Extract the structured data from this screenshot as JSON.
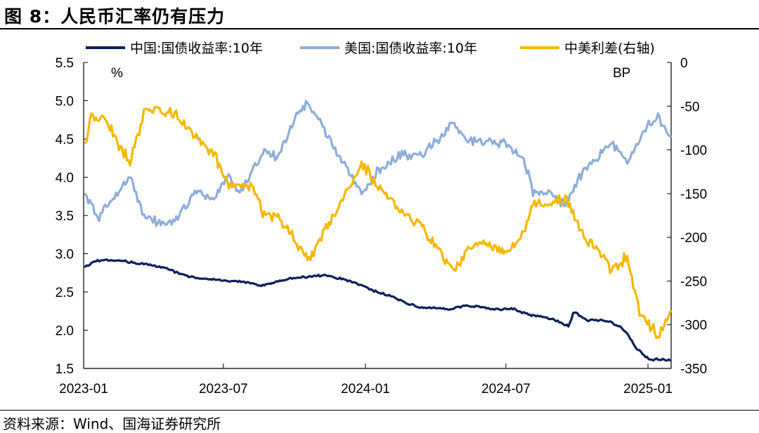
{
  "figure": {
    "title": "图 8：人民币汇率仍有压力",
    "source": "资料来源：Wind、国海证券研究所"
  },
  "chart_data": {
    "type": "line",
    "left_axis": {
      "unit": "%",
      "min": 1.5,
      "max": 5.5,
      "ticks": [
        "5.5",
        "5.0",
        "4.5",
        "4.0",
        "3.5",
        "3.0",
        "2.5",
        "2.0",
        "1.5"
      ]
    },
    "right_axis": {
      "unit": "BP",
      "min": -350,
      "max": 0,
      "ticks": [
        "0",
        "-50",
        "-100",
        "-150",
        "-200",
        "-250",
        "-300",
        "-350"
      ]
    },
    "x_axis": {
      "start": "2023-01-01",
      "end": "2025-01-31",
      "ticks": [
        "2023-01",
        "2023-07",
        "2024-01",
        "2024-07",
        "2025-01"
      ]
    },
    "legend_position": "top",
    "grid": false,
    "series": [
      {
        "name": "中国:国债收益率:10年",
        "axis": "left",
        "color": "#0d1f5c",
        "points": [
          [
            "2023-01-03",
            2.82
          ],
          [
            "2023-01-15",
            2.9
          ],
          [
            "2023-02-01",
            2.92
          ],
          [
            "2023-02-20",
            2.91
          ],
          [
            "2023-03-10",
            2.88
          ],
          [
            "2023-04-01",
            2.85
          ],
          [
            "2023-04-20",
            2.8
          ],
          [
            "2023-05-10",
            2.72
          ],
          [
            "2023-06-01",
            2.68
          ],
          [
            "2023-06-20",
            2.66
          ],
          [
            "2023-07-10",
            2.64
          ],
          [
            "2023-08-01",
            2.63
          ],
          [
            "2023-08-20",
            2.58
          ],
          [
            "2023-09-10",
            2.64
          ],
          [
            "2023-10-01",
            2.69
          ],
          [
            "2023-10-20",
            2.7
          ],
          [
            "2023-11-10",
            2.72
          ],
          [
            "2023-12-01",
            2.67
          ],
          [
            "2023-12-20",
            2.62
          ],
          [
            "2024-01-10",
            2.52
          ],
          [
            "2024-02-01",
            2.45
          ],
          [
            "2024-02-20",
            2.37
          ],
          [
            "2024-03-10",
            2.3
          ],
          [
            "2024-04-01",
            2.29
          ],
          [
            "2024-04-20",
            2.28
          ],
          [
            "2024-05-10",
            2.32
          ],
          [
            "2024-06-01",
            2.3
          ],
          [
            "2024-06-20",
            2.27
          ],
          [
            "2024-07-10",
            2.28
          ],
          [
            "2024-08-01",
            2.2
          ],
          [
            "2024-08-20",
            2.17
          ],
          [
            "2024-09-01",
            2.14
          ],
          [
            "2024-09-20",
            2.05
          ],
          [
            "2024-09-27",
            2.24
          ],
          [
            "2024-10-15",
            2.13
          ],
          [
            "2024-11-10",
            2.12
          ],
          [
            "2024-11-25",
            2.05
          ],
          [
            "2024-12-05",
            1.96
          ],
          [
            "2024-12-15",
            1.78
          ],
          [
            "2025-01-03",
            1.62
          ],
          [
            "2025-01-31",
            1.61
          ]
        ]
      },
      {
        "name": "美国:国债收益率:10年",
        "axis": "left",
        "color": "#8fadda",
        "points": [
          [
            "2023-01-03",
            3.79
          ],
          [
            "2023-01-20",
            3.48
          ],
          [
            "2023-02-15",
            3.8
          ],
          [
            "2023-03-02",
            4.03
          ],
          [
            "2023-03-20",
            3.48
          ],
          [
            "2023-04-10",
            3.4
          ],
          [
            "2023-05-01",
            3.45
          ],
          [
            "2023-05-25",
            3.8
          ],
          [
            "2023-06-20",
            3.72
          ],
          [
            "2023-07-07",
            4.05
          ],
          [
            "2023-07-20",
            3.8
          ],
          [
            "2023-08-10",
            4.1
          ],
          [
            "2023-08-21",
            4.33
          ],
          [
            "2023-09-10",
            4.27
          ],
          [
            "2023-10-03",
            4.8
          ],
          [
            "2023-10-19",
            4.98
          ],
          [
            "2023-11-10",
            4.6
          ],
          [
            "2023-12-01",
            4.22
          ],
          [
            "2023-12-27",
            3.79
          ],
          [
            "2024-01-20",
            4.12
          ],
          [
            "2024-02-15",
            4.28
          ],
          [
            "2024-03-15",
            4.3
          ],
          [
            "2024-04-25",
            4.7
          ],
          [
            "2024-05-10",
            4.5
          ],
          [
            "2024-06-01",
            4.45
          ],
          [
            "2024-07-01",
            4.45
          ],
          [
            "2024-07-25",
            4.22
          ],
          [
            "2024-08-05",
            3.8
          ],
          [
            "2024-08-25",
            3.82
          ],
          [
            "2024-09-16",
            3.62
          ],
          [
            "2024-10-10",
            4.1
          ],
          [
            "2024-11-05",
            4.35
          ],
          [
            "2024-11-15",
            4.45
          ],
          [
            "2024-12-05",
            4.18
          ],
          [
            "2024-12-25",
            4.6
          ],
          [
            "2025-01-13",
            4.79
          ],
          [
            "2025-01-31",
            4.54
          ]
        ]
      },
      {
        "name": "中美利差(右轴)",
        "axis": "right",
        "color": "#f5b800",
        "points": [
          [
            "2023-01-03",
            -97
          ],
          [
            "2023-01-10",
            -60
          ],
          [
            "2023-02-01",
            -70
          ],
          [
            "2023-02-15",
            -95
          ],
          [
            "2023-03-02",
            -114
          ],
          [
            "2023-03-20",
            -58
          ],
          [
            "2023-04-10",
            -55
          ],
          [
            "2023-05-01",
            -60
          ],
          [
            "2023-05-25",
            -85
          ],
          [
            "2023-06-20",
            -107
          ],
          [
            "2023-07-07",
            -140
          ],
          [
            "2023-08-10",
            -145
          ],
          [
            "2023-08-21",
            -172
          ],
          [
            "2023-09-10",
            -178
          ],
          [
            "2023-10-03",
            -205
          ],
          [
            "2023-10-19",
            -226
          ],
          [
            "2023-11-10",
            -190
          ],
          [
            "2023-12-01",
            -160
          ],
          [
            "2023-12-27",
            -115
          ],
          [
            "2024-01-20",
            -145
          ],
          [
            "2024-02-15",
            -170
          ],
          [
            "2024-03-15",
            -190
          ],
          [
            "2024-04-25",
            -240
          ],
          [
            "2024-05-10",
            -216
          ],
          [
            "2024-06-01",
            -205
          ],
          [
            "2024-07-01",
            -218
          ],
          [
            "2024-07-25",
            -195
          ],
          [
            "2024-08-05",
            -160
          ],
          [
            "2024-08-25",
            -162
          ],
          [
            "2024-09-16",
            -155
          ],
          [
            "2024-10-10",
            -198
          ],
          [
            "2024-11-05",
            -225
          ],
          [
            "2024-11-15",
            -238
          ],
          [
            "2024-12-05",
            -222
          ],
          [
            "2024-12-20",
            -283
          ],
          [
            "2025-01-13",
            -312
          ],
          [
            "2025-01-31",
            -288
          ]
        ]
      }
    ]
  }
}
